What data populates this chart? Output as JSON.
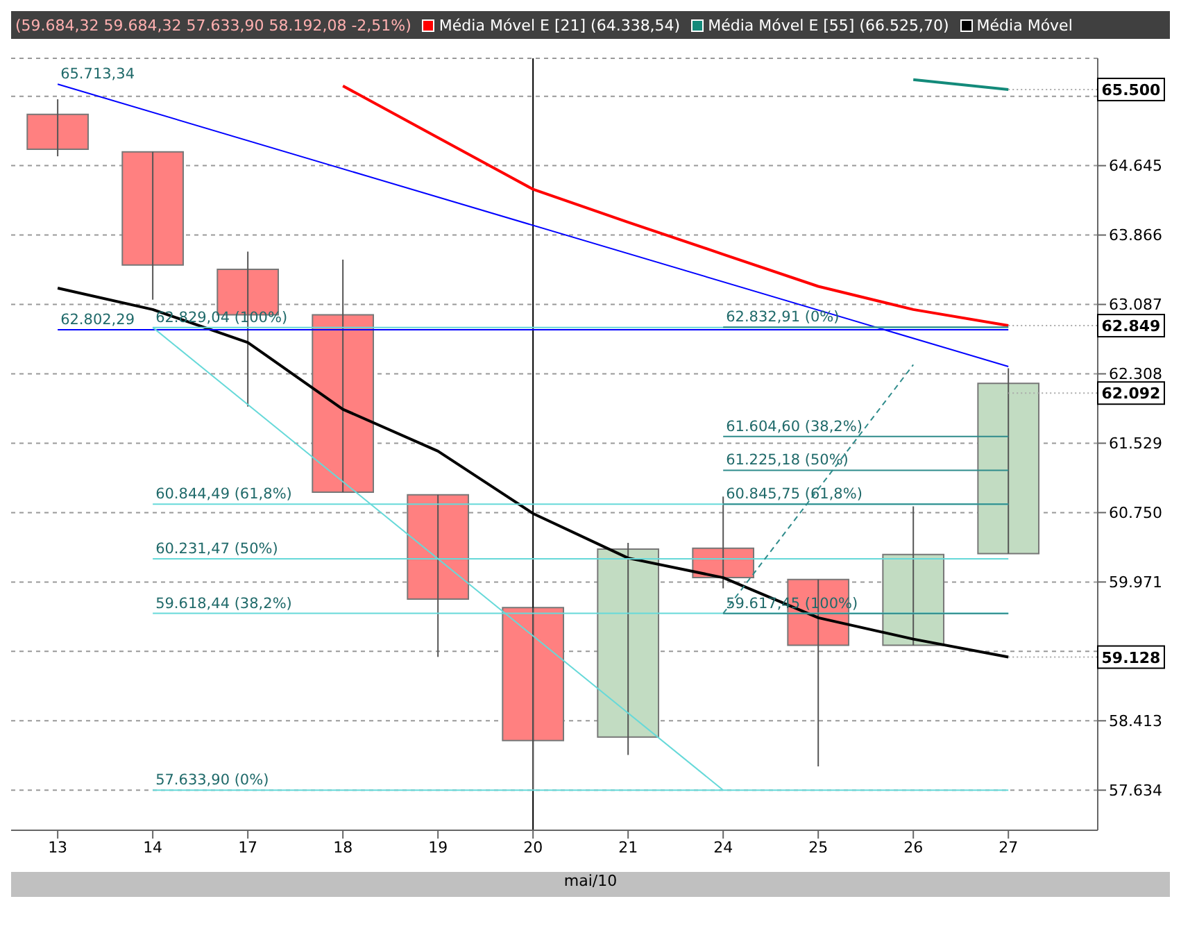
{
  "chart_data": {
    "type": "candlestick",
    "title": "(59.684,32 59.684,32 57.633,90 58.192,08 -2,51%)",
    "xlabel": "mai/10",
    "categories": [
      "13",
      "14",
      "17",
      "18",
      "19",
      "20",
      "21",
      "24",
      "25",
      "26",
      "27"
    ],
    "ylim": [
      57184,
      65850
    ],
    "yticks": [
      {
        "value": 57634,
        "label": "57.634"
      },
      {
        "value": 58413,
        "label": "58.413"
      },
      {
        "value": 59192,
        "label": null
      },
      {
        "value": 59971,
        "label": "59.971"
      },
      {
        "value": 60750,
        "label": "60.750"
      },
      {
        "value": 61529,
        "label": "61.529"
      },
      {
        "value": 62308,
        "label": "62.308"
      },
      {
        "value": 63087,
        "label": "63.087"
      },
      {
        "value": 63866,
        "label": "63.866"
      },
      {
        "value": 64645,
        "label": "64.645"
      },
      {
        "value": 65424,
        "label": null
      }
    ],
    "ohlc": [
      [
        65220,
        65390,
        64750,
        64830
      ],
      [
        64800,
        64800,
        63140,
        63530
      ],
      [
        63480,
        63680,
        61940,
        62970
      ],
      [
        62970,
        63590,
        60980,
        60980
      ],
      [
        60950,
        60950,
        59130,
        59780
      ],
      [
        59684.32,
        59684.32,
        57633.9,
        58192.08
      ],
      [
        58230,
        60410,
        58030,
        60340
      ],
      [
        60350,
        60930,
        59900,
        60020
      ],
      [
        60000,
        60000,
        57900,
        59260
      ],
      [
        59260,
        60820,
        59260,
        60280
      ],
      [
        60290,
        62370,
        60290,
        62200
      ]
    ],
    "colors": [
      "#ff8080",
      "#ff8080",
      "#ff8080",
      "#ff8080",
      "#ff8080",
      "#ff8080",
      "#c2dcc2",
      "#ff8080",
      "#ff8080",
      "#c2dcc2",
      "#c2dcc2"
    ],
    "series": [
      {
        "type": "line",
        "name": "Média Móvel E [21] (64.338,54)",
        "color": "#ff0000",
        "values": [
          null,
          null,
          null,
          65540,
          64960,
          64380,
          64010,
          63650,
          63290,
          63030,
          62849
        ]
      },
      {
        "type": "line",
        "name": "Média Móvel E [55] (66.525,70)",
        "color": "#138a7a",
        "values": [
          null,
          null,
          null,
          null,
          null,
          null,
          null,
          null,
          null,
          65610,
          65500
        ]
      },
      {
        "type": "line",
        "name": "Média Móvel",
        "color": "#000000",
        "values": [
          63270,
          63030,
          62660,
          61910,
          61440,
          60740,
          60240,
          60020,
          59570,
          59330,
          59128
        ]
      },
      {
        "type": "line",
        "color": "#0000ff",
        "values": [
          65560,
          null,
          null,
          null,
          null,
          null,
          null,
          null,
          null,
          null,
          62390
        ]
      },
      {
        "type": "line",
        "color": "#0000ff",
        "values": [
          62802.29,
          null,
          null,
          null,
          null,
          null,
          null,
          null,
          null,
          null,
          62802.29
        ]
      },
      {
        "type": "line",
        "color": "#66d9d9",
        "values": [
          null,
          62829.04,
          null,
          null,
          null,
          null,
          null,
          57633.9,
          null,
          null,
          null
        ]
      },
      {
        "type": "line",
        "color": "#66d9d9",
        "values": [
          null,
          62829.04,
          null,
          null,
          null,
          null,
          null,
          null,
          null,
          null,
          62829.04
        ]
      },
      {
        "type": "line",
        "color": "#66d9d9",
        "values": [
          null,
          60844.49,
          null,
          null,
          null,
          null,
          null,
          null,
          null,
          null,
          60844.49
        ]
      },
      {
        "type": "line",
        "color": "#66d9d9",
        "values": [
          null,
          60231.47,
          null,
          null,
          null,
          null,
          null,
          null,
          null,
          null,
          60231.47
        ]
      },
      {
        "type": "line",
        "color": "#66d9d9",
        "values": [
          null,
          59618.44,
          null,
          null,
          null,
          null,
          null,
          null,
          null,
          null,
          59618.44
        ]
      },
      {
        "type": "line",
        "color": "#66d9d9",
        "values": [
          null,
          57633.9,
          null,
          null,
          null,
          null,
          null,
          null,
          null,
          null,
          57633.9
        ]
      },
      {
        "type": "line",
        "color": "#2e8b8b",
        "values": [
          null,
          null,
          null,
          null,
          null,
          null,
          null,
          62832.91,
          null,
          null,
          62832.91
        ]
      },
      {
        "type": "line",
        "color": "#2e8b8b",
        "values": [
          null,
          null,
          null,
          null,
          null,
          null,
          null,
          61604.6,
          null,
          null,
          61604.6
        ]
      },
      {
        "type": "line",
        "color": "#2e8b8b",
        "values": [
          null,
          null,
          null,
          null,
          null,
          null,
          null,
          61225.18,
          null,
          null,
          61225.18
        ]
      },
      {
        "type": "line",
        "color": "#2e8b8b",
        "values": [
          null,
          null,
          null,
          null,
          null,
          null,
          null,
          60845.75,
          null,
          null,
          60845.75
        ]
      },
      {
        "type": "line",
        "color": "#2e8b8b",
        "values": [
          null,
          null,
          null,
          null,
          null,
          null,
          null,
          59617.45,
          null,
          null,
          59617.45
        ]
      },
      {
        "type": "line",
        "line_style": "dashed",
        "color": "#2e8b8b",
        "values": [
          null,
          null,
          null,
          null,
          null,
          null,
          null,
          59617.45,
          null,
          62410,
          null
        ]
      }
    ],
    "ref_lines": [
      {
        "axis": "x",
        "value": "20",
        "color": "#000000"
      }
    ],
    "annotations": [
      {
        "text": "65.713,34",
        "x": "13",
        "y": 65560
      },
      {
        "text": "62.802,29",
        "x": "13",
        "y": 62802.29
      },
      {
        "text": "62.829,04 (100%)",
        "x": "14",
        "y": 62829.04
      },
      {
        "text": "60.844,49 (61,8%)",
        "x": "14",
        "y": 60844.49
      },
      {
        "text": "60.231,47 (50%)",
        "x": "14",
        "y": 60231.47
      },
      {
        "text": "59.618,44 (38,2%)",
        "x": "14",
        "y": 59618.44
      },
      {
        "text": "57.633,90 (0%)",
        "x": "14",
        "y": 57633.9
      },
      {
        "text": "62.832,91 (0%)",
        "x": "24",
        "y": 62832.91
      },
      {
        "text": "61.604,60 (38,2%)",
        "x": "24",
        "y": 61604.6
      },
      {
        "text": "61.225,18 (50%)",
        "x": "24",
        "y": 61225.18
      },
      {
        "text": "60.845,75 (61,8%)",
        "x": "24",
        "y": 60845.75
      },
      {
        "text": "59.617,45 (100%)",
        "x": "24",
        "y": 59617.45
      },
      {
        "text": "65.500",
        "x": "27",
        "y": 65500
      },
      {
        "text": "62.849",
        "x": "27",
        "y": 62849
      },
      {
        "text": "62.092",
        "x": "27",
        "y": 62092
      },
      {
        "text": "59.128",
        "x": "27",
        "y": 59128
      }
    ],
    "grid": "y",
    "legend": "top",
    "marker": "none"
  }
}
